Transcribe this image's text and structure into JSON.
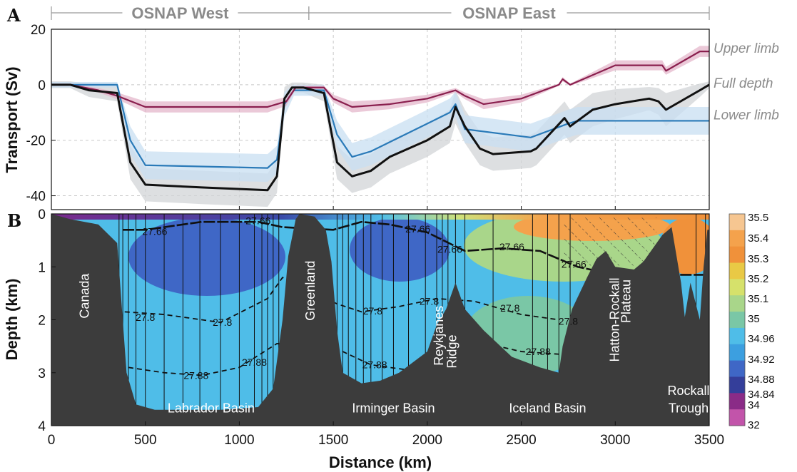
{
  "panel_a": {
    "letter": "A",
    "sections": [
      {
        "label": "OSNAP West",
        "x_start": 0,
        "x_end": 1370
      },
      {
        "label": "OSNAP East",
        "x_start": 1370,
        "x_end": 3500
      }
    ]
  },
  "panel_b": {
    "letter": "B",
    "regions": [
      {
        "text": "Canada",
        "x": 200,
        "y": 1.55,
        "rotate": true
      },
      {
        "text": "Greenland",
        "x": 1400,
        "y": 1.45,
        "rotate": true
      },
      {
        "text": "Reykjanes",
        "x": 2085,
        "y": 2.3,
        "rotate": true
      },
      {
        "text": "Ridge",
        "x": 2155,
        "y": 2.6,
        "rotate": true
      },
      {
        "text": "Hatton-Rockall",
        "x": 3020,
        "y": 2.0,
        "rotate": true
      },
      {
        "text": "Plateau",
        "x": 3080,
        "y": 1.65,
        "rotate": true
      },
      {
        "text": "Labrador Basin",
        "x": 850,
        "y": 3.75,
        "rotate": false
      },
      {
        "text": "Irminger Basin",
        "x": 1820,
        "y": 3.75,
        "rotate": false
      },
      {
        "text": "Iceland Basin",
        "x": 2640,
        "y": 3.75,
        "rotate": false
      },
      {
        "text": "Rockall",
        "x": 3390,
        "y": 3.42,
        "rotate": false
      },
      {
        "text": "Trough",
        "x": 3390,
        "y": 3.75,
        "rotate": false
      }
    ],
    "contour_labels": [
      {
        "text": "27.66",
        "x": 550,
        "y": 0.33
      },
      {
        "text": "27.66",
        "x": 1100,
        "y": 0.13
      },
      {
        "text": "27.66",
        "x": 1950,
        "y": 0.28
      },
      {
        "text": "27.66",
        "x": 2120,
        "y": 0.67
      },
      {
        "text": "27.66",
        "x": 2450,
        "y": 0.62
      },
      {
        "text": "27.66",
        "x": 2780,
        "y": 0.95
      },
      {
        "text": "27.8",
        "x": 500,
        "y": 1.95
      },
      {
        "text": "27.8",
        "x": 910,
        "y": 2.05
      },
      {
        "text": "27.8",
        "x": 1710,
        "y": 1.83
      },
      {
        "text": "27.8",
        "x": 2010,
        "y": 1.65
      },
      {
        "text": "27.8",
        "x": 2440,
        "y": 1.78
      },
      {
        "text": "27.8",
        "x": 2750,
        "y": 2.03
      },
      {
        "text": "27.88",
        "x": 770,
        "y": 3.05
      },
      {
        "text": "27.88",
        "x": 1080,
        "y": 2.8
      },
      {
        "text": "27.88",
        "x": 1720,
        "y": 2.85
      },
      {
        "text": "27.88",
        "x": 2590,
        "y": 2.6
      }
    ],
    "colorbar": {
      "labels": [
        "35.5",
        "35.4",
        "35.3",
        "35.2",
        "35.1",
        "35",
        "34.96",
        "34.92",
        "34.88",
        "34.84",
        "34",
        "32"
      ],
      "colors": [
        "#f6c691",
        "#f4a24c",
        "#f0913a",
        "#e9c945",
        "#d6e16b",
        "#a9d68a",
        "#7ac7a6",
        "#4fbde8",
        "#3c9fe0",
        "#3f67c6",
        "#343e9a",
        "#8a2b87",
        "#c254aa"
      ]
    }
  },
  "chart_data": [
    {
      "type": "line",
      "title": "",
      "xlabel": "",
      "ylabel": "Transport (Sv)",
      "xlim": [
        0,
        3500
      ],
      "ylim": [
        -45,
        20
      ],
      "xticks": [
        0,
        500,
        1000,
        1500,
        2000,
        2500,
        3000,
        3500
      ],
      "yticks": [
        20,
        0,
        -20,
        -40
      ],
      "grid": true,
      "series": [
        {
          "name": "Upper limb",
          "color": "#8a1f4e",
          "band_color": "#e4b7cb",
          "x": [
            0,
            100,
            250,
            350,
            500,
            1000,
            1150,
            1250,
            1300,
            1450,
            1500,
            1600,
            1800,
            2000,
            2150,
            2200,
            2300,
            2500,
            2700,
            2720,
            2760,
            3000,
            3250,
            3270,
            3450,
            3500
          ],
          "y": [
            0,
            0,
            -2,
            -4,
            -8,
            -8,
            -8,
            -6,
            -1,
            -1,
            -5,
            -8,
            -7,
            -5,
            -2,
            -4,
            -7,
            -5,
            0,
            2,
            0,
            7,
            7,
            5,
            12,
            12
          ],
          "spread": 2
        },
        {
          "name": "Full depth",
          "color": "#111111",
          "band_color": "#d2d4d7",
          "x": [
            0,
            100,
            200,
            350,
            420,
            500,
            800,
            1150,
            1200,
            1240,
            1280,
            1340,
            1450,
            1520,
            1600,
            1700,
            1800,
            2000,
            2120,
            2150,
            2200,
            2280,
            2350,
            2550,
            2580,
            2730,
            2760,
            2880,
            3000,
            3180,
            3230,
            3270,
            3450,
            3500
          ],
          "y": [
            0,
            0,
            -2,
            -3,
            -28,
            -36,
            -37,
            -38,
            -33,
            -5,
            -1,
            -1,
            -3,
            -28,
            -33,
            -31,
            -26,
            -20,
            -15,
            -8,
            -15,
            -23,
            -25,
            -24,
            -23,
            -12,
            -15,
            -9,
            -7,
            -5,
            -6,
            -9,
            -2,
            0
          ],
          "spread": 6
        },
        {
          "name": "Lower limb",
          "color": "#2a7ab8",
          "band_color": "#c8dff1",
          "x": [
            0,
            350,
            420,
            500,
            1150,
            1200,
            1240,
            1290,
            1450,
            1520,
            1600,
            1700,
            2000,
            2120,
            2150,
            2200,
            2550,
            2750,
            2800,
            3000,
            3250,
            3500
          ],
          "y": [
            0,
            0,
            -20,
            -29,
            -30,
            -27,
            -7,
            -2,
            -2,
            -18,
            -26,
            -24,
            -14,
            -10,
            -7,
            -16,
            -19,
            -14,
            -13,
            -13,
            -13,
            -13
          ],
          "spread": 5
        }
      ]
    },
    {
      "type": "heatmap",
      "title": "",
      "xlabel": "Distance (km)",
      "ylabel": "Depth (km)",
      "xlim": [
        0,
        3500
      ],
      "ylim": [
        0,
        4
      ],
      "xticks": [
        0,
        500,
        1000,
        1500,
        2000,
        2500,
        3000,
        3500
      ],
      "yticks": [
        0,
        1,
        2,
        3,
        4
      ],
      "colorbar_ticks": [
        35.5,
        35.4,
        35.3,
        35.2,
        35.1,
        35,
        34.96,
        34.92,
        34.88,
        34.84,
        34,
        32
      ],
      "isopycnals": [
        {
          "level": 27.66,
          "x": [
            380,
            500,
            800,
            1100,
            1230,
            1500,
            1650,
            1800,
            2000,
            2200,
            2400,
            2600,
            2800,
            3000,
            3200,
            3350,
            3480
          ],
          "y": [
            0.3,
            0.3,
            0.15,
            0.15,
            0.25,
            0.3,
            0.15,
            0.2,
            0.35,
            0.7,
            0.65,
            0.7,
            1.0,
            1.15,
            1.1,
            1.15,
            1.15
          ]
        },
        {
          "level": 27.8,
          "x": [
            390,
            600,
            900,
            1150,
            1230,
            1520,
            1650,
            1850,
            2050,
            2250,
            2500,
            2700
          ],
          "y": [
            1.85,
            1.9,
            2.05,
            1.6,
            1.2,
            1.7,
            1.85,
            1.75,
            1.6,
            1.65,
            1.9,
            2.0
          ]
        },
        {
          "level": 27.88,
          "x": [
            410,
            600,
            800,
            1000,
            1200,
            1550,
            1700,
            1900,
            2250,
            2500,
            2700
          ],
          "y": [
            2.9,
            3.0,
            3.05,
            2.9,
            2.45,
            2.6,
            2.85,
            2.95,
            2.4,
            2.6,
            2.65
          ]
        }
      ],
      "bathymetry": {
        "x": [
          0,
          100,
          250,
          350,
          400,
          450,
          550,
          700,
          900,
          1100,
          1180,
          1230,
          1260,
          1300,
          1320,
          1400,
          1460,
          1490,
          1520,
          1550,
          1650,
          1750,
          1850,
          2000,
          2050,
          2100,
          2150,
          2200,
          2300,
          2450,
          2600,
          2700,
          2720,
          2770,
          2850,
          2900,
          2950,
          3000,
          3100,
          3150,
          3250,
          3300,
          3350,
          3370,
          3400,
          3450,
          3470,
          3490
        ],
        "depth": [
          0,
          0.1,
          0.2,
          0.55,
          3.0,
          3.6,
          3.7,
          3.7,
          3.7,
          3.65,
          3.3,
          2.0,
          0.8,
          0.1,
          0.0,
          0.05,
          0.3,
          0.9,
          2.2,
          3.0,
          3.2,
          3.15,
          3.0,
          2.6,
          2.1,
          1.8,
          1.3,
          1.8,
          2.2,
          2.7,
          2.9,
          3.0,
          2.5,
          1.8,
          1.2,
          0.85,
          0.7,
          1.0,
          1.05,
          0.9,
          0.4,
          0.25,
          1.3,
          1.95,
          1.3,
          2.0,
          1.0,
          0.3
        ]
      }
    }
  ]
}
